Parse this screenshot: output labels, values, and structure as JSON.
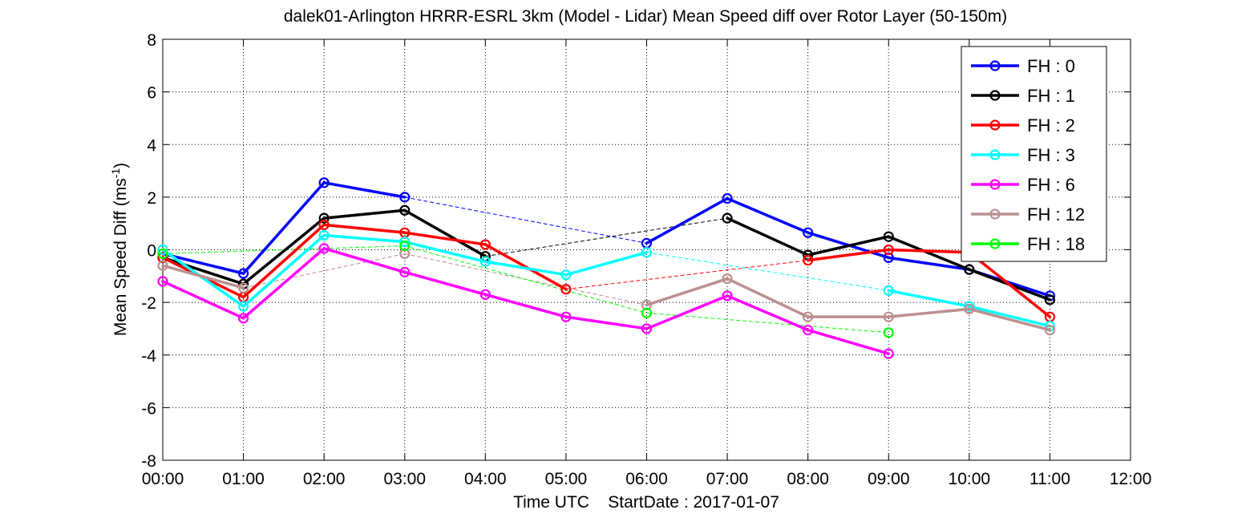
{
  "chart_data": {
    "type": "line",
    "title": "dalek01-Arlington HRRR-ESRL 3km (Model - Lidar) Mean Speed diff over Rotor Layer (50-150m)",
    "xlabel": "Time UTC    StartDate : 2017-01-07",
    "ylabel_main": "Mean Speed Diff (ms",
    "ylabel_sup": "-1",
    "ylabel_end": ")",
    "xlim": [
      0,
      12
    ],
    "ylim": [
      -8,
      8
    ],
    "x_ticks": [
      0,
      1,
      2,
      3,
      4,
      5,
      6,
      7,
      8,
      9,
      10,
      11,
      12
    ],
    "x_tick_labels": [
      "00:00",
      "01:00",
      "02:00",
      "03:00",
      "04:00",
      "05:00",
      "06:00",
      "07:00",
      "08:00",
      "09:00",
      "10:00",
      "11:00",
      "12:00"
    ],
    "y_ticks": [
      -8,
      -6,
      -4,
      -2,
      0,
      2,
      4,
      6,
      8
    ],
    "y_tick_labels": [
      "-8",
      "-6",
      "-4",
      "-2",
      "0",
      "2",
      "4",
      "6",
      "8"
    ],
    "grid": true,
    "legend_position": "top-right",
    "series": [
      {
        "name": "FH : 0",
        "color": "#0000ff",
        "points": [
          [
            0,
            -0.15
          ],
          [
            1,
            -0.9
          ],
          [
            2,
            2.55
          ],
          [
            3,
            2.0
          ],
          [
            6,
            0.25
          ],
          [
            7,
            1.95
          ],
          [
            8,
            0.65
          ],
          [
            9,
            -0.3
          ],
          [
            10,
            -0.75
          ],
          [
            11,
            -1.75
          ]
        ]
      },
      {
        "name": "FH : 1",
        "color": "#000000",
        "points": [
          [
            0,
            -0.3
          ],
          [
            1,
            -1.3
          ],
          [
            2,
            1.2
          ],
          [
            3,
            1.5
          ],
          [
            4,
            -0.25
          ],
          [
            7,
            1.2
          ],
          [
            8,
            -0.2
          ],
          [
            9,
            0.5
          ],
          [
            10,
            -0.75
          ],
          [
            11,
            -1.9
          ]
        ]
      },
      {
        "name": "FH : 2",
        "color": "#ff0000",
        "points": [
          [
            0,
            -0.3
          ],
          [
            1,
            -1.8
          ],
          [
            2,
            0.95
          ],
          [
            3,
            0.65
          ],
          [
            4,
            0.2
          ],
          [
            5,
            -1.5
          ],
          [
            8,
            -0.4
          ],
          [
            9,
            0.0
          ],
          [
            10,
            -0.1
          ],
          [
            11,
            -2.55
          ]
        ]
      },
      {
        "name": "FH : 3",
        "color": "#00ffff",
        "points": [
          [
            0,
            0.0
          ],
          [
            1,
            -2.15
          ],
          [
            2,
            0.55
          ],
          [
            3,
            0.3
          ],
          [
            4,
            -0.45
          ],
          [
            5,
            -0.95
          ],
          [
            6,
            -0.1
          ],
          [
            9,
            -1.55
          ],
          [
            10,
            -2.15
          ],
          [
            11,
            -2.9
          ]
        ]
      },
      {
        "name": "FH : 6",
        "color": "#ff00ff",
        "points": [
          [
            0,
            -1.2
          ],
          [
            1,
            -2.6
          ],
          [
            2,
            0.05
          ],
          [
            3,
            -0.85
          ],
          [
            4,
            -1.7
          ],
          [
            5,
            -2.55
          ],
          [
            6,
            -3.0
          ],
          [
            7,
            -1.75
          ],
          [
            8,
            -3.05
          ],
          [
            9,
            -3.95
          ]
        ]
      },
      {
        "name": "FH : 12",
        "color": "#bc8f8f",
        "points": [
          [
            0,
            -0.6
          ],
          [
            1,
            -1.45
          ],
          [
            3,
            -0.15
          ],
          [
            6,
            -2.1
          ],
          [
            7,
            -1.1
          ],
          [
            8,
            -2.55
          ],
          [
            9,
            -2.55
          ],
          [
            10,
            -2.25
          ],
          [
            11,
            -3.05
          ]
        ]
      },
      {
        "name": "FH : 18",
        "color": "#00ff00",
        "points": [
          [
            0,
            -0.15
          ],
          [
            3,
            0.15
          ],
          [
            6,
            -2.4
          ],
          [
            9,
            -3.15
          ]
        ]
      }
    ]
  }
}
